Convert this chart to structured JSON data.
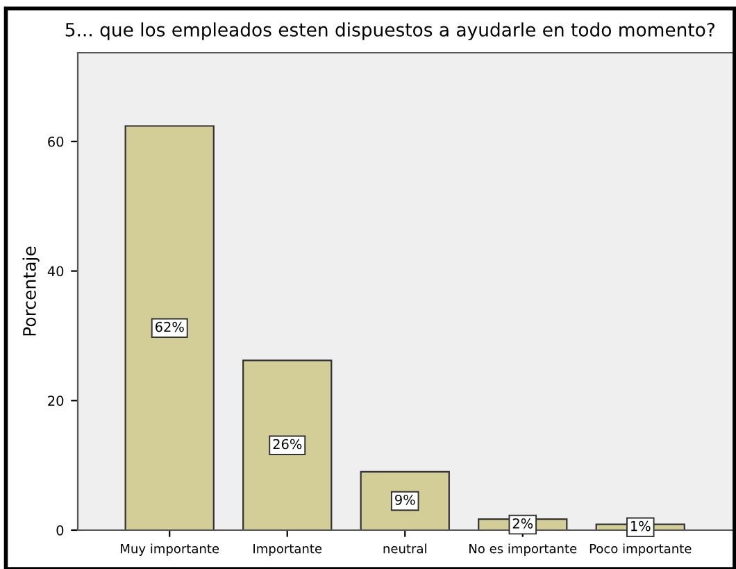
{
  "chart_data": {
    "type": "bar",
    "title": "5... que los empleados esten dispuestos a ayudarle en todo momento?",
    "ylabel": "Porcentaje",
    "categories": [
      "Muy importante",
      "Importante",
      "neutral",
      "No es importante",
      "Poco importante"
    ],
    "values": [
      62.4,
      26.2,
      9.0,
      1.7,
      0.9
    ],
    "value_labels": [
      "62%",
      "26%",
      "9%",
      "2%",
      "1%"
    ],
    "color": "#d3ce97",
    "ylim": [
      0,
      73.7
    ],
    "yticks": [
      0,
      20,
      40,
      60
    ],
    "grid": false,
    "legend": false
  }
}
